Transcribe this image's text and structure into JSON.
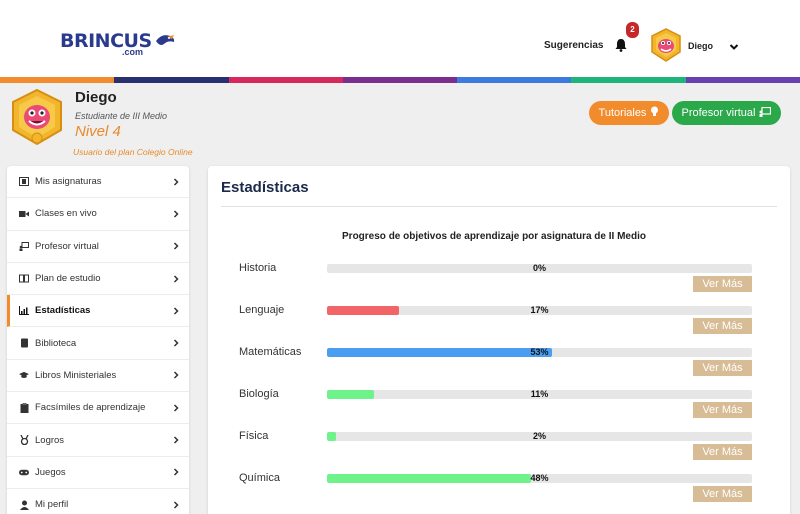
{
  "header": {
    "logo_text": "BRINCUS",
    "logo_com": ".com",
    "sugerencias": "Sugerencias",
    "notification_count": "2",
    "user_name": "Diego"
  },
  "colorbar": [
    "#f28b2c",
    "#2a2f72",
    "#d6285c",
    "#7a2e8e",
    "#3b7be0",
    "#1fb57a",
    "#6a3fb0"
  ],
  "profile": {
    "name": "Diego",
    "role": "Estudiante de III Medio",
    "level": "Nivel 4",
    "plan": "Usuario del plan Colegio Online"
  },
  "buttons": {
    "tutoriales": "Tutoriales",
    "profesor_virtual": "Profesor virtual"
  },
  "sidebar": {
    "items": [
      {
        "label": "Mis asignaturas",
        "icon": "film-icon"
      },
      {
        "label": "Clases en vivo",
        "icon": "video-camera-icon"
      },
      {
        "label": "Profesor virtual",
        "icon": "teacher-board-icon"
      },
      {
        "label": "Plan de estudio",
        "icon": "book-open-icon"
      },
      {
        "label": "Estadísticas",
        "icon": "chart-icon",
        "active": true
      },
      {
        "label": "Biblioteca",
        "icon": "book-icon"
      },
      {
        "label": "Libros Ministeriales",
        "icon": "graduation-cap-icon"
      },
      {
        "label": "Facsímiles de aprendizaje",
        "icon": "clipboard-icon"
      },
      {
        "label": "Logros",
        "icon": "medal-icon"
      },
      {
        "label": "Juegos",
        "icon": "gamepad-icon"
      },
      {
        "label": "Mi perfil",
        "icon": "user-icon"
      }
    ]
  },
  "main": {
    "title": "Estadísticas",
    "chart_title": "Progreso de objetivos de aprendizaje por asignatura de II Medio",
    "ver_mas": "Ver Más"
  },
  "chart_data": {
    "type": "bar",
    "title": "Progreso de objetivos de aprendizaje por asignatura de II Medio",
    "categories": [
      "Historia",
      "Lenguaje",
      "Matemáticas",
      "Biología",
      "Física",
      "Química"
    ],
    "values": [
      0,
      17,
      53,
      11,
      2,
      48
    ],
    "value_labels": [
      "0%",
      "17%",
      "53%",
      "11%",
      "2%",
      "48%"
    ],
    "colors": [
      "#e6e6e6",
      "#f26466",
      "#4a9ef2",
      "#6ef28a",
      "#6ef28a",
      "#6ef28a"
    ],
    "ylim": [
      0,
      100
    ]
  }
}
